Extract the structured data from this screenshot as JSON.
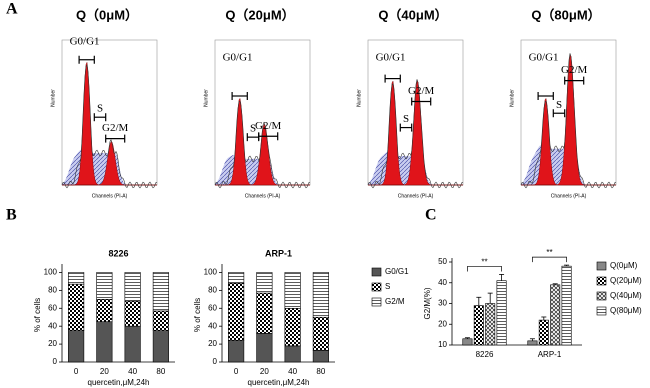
{
  "panels": [
    "A",
    "B",
    "C"
  ],
  "flow": {
    "titles": [
      "Q（0μM）",
      "Q（20μM）",
      "Q（40μM）",
      "Q（80μM）"
    ],
    "gates": [
      "G0/G1",
      "S",
      "G2/M"
    ],
    "x_label": "Channels (PI-A)",
    "y_label": "Number"
  },
  "chart_data": [
    {
      "type": "stacked_bar",
      "title": "8226",
      "x_label": "quercetin,μM,24h",
      "y_label": "% of cells",
      "categories": [
        "0",
        "20",
        "40",
        "80"
      ],
      "series": [
        {
          "color": "#555555",
          "values": [
            35,
            45,
            40,
            35
          ]
        },
        {
          "color": "#000000",
          "pattern": "checker",
          "values": [
            52,
            25,
            28,
            22
          ]
        },
        {
          "color": "#000000",
          "pattern": "hlines",
          "values": [
            13,
            30,
            32,
            43
          ]
        }
      ],
      "ylim": [
        0,
        105
      ],
      "yticks": [
        0,
        20,
        40,
        60,
        80,
        100
      ]
    },
    {
      "type": "stacked_bar",
      "title": "ARP-1",
      "x_label": "quercetin,μM,24h",
      "y_label": "% of cells",
      "categories": [
        "0",
        "20",
        "40",
        "80"
      ],
      "series": [
        {
          "name": "G0/G1",
          "color": "#555555",
          "values": [
            24,
            32,
            18,
            13
          ]
        },
        {
          "name": "S",
          "color": "#000000",
          "pattern": "checker",
          "values": [
            64,
            45,
            42,
            37
          ]
        },
        {
          "name": "G2/M",
          "color": "#000000",
          "pattern": "hlines",
          "values": [
            12,
            23,
            40,
            50
          ]
        }
      ],
      "ylim": [
        0,
        105
      ],
      "yticks": [
        0,
        20,
        40,
        60,
        80,
        100
      ],
      "legend": "right"
    },
    {
      "type": "grouped_bar",
      "y_label": "G2/M(%)",
      "categories": [
        "8226",
        "ARP-1"
      ],
      "series": [
        {
          "name": "Q(0μM)",
          "color": "#888888",
          "values": [
            13,
            12
          ],
          "errors": [
            0.5,
            1
          ]
        },
        {
          "name": "Q(20μM)",
          "color": "#000000",
          "pattern": "checker",
          "values": [
            29,
            22
          ],
          "errors": [
            4,
            1.5
          ]
        },
        {
          "name": "Q(40μM)",
          "color": "#000000",
          "pattern": "diag",
          "values": [
            30,
            39
          ],
          "errors": [
            5,
            0.5
          ]
        },
        {
          "name": "Q(80μM)",
          "color": "#000000",
          "pattern": "hlines",
          "values": [
            41,
            48
          ],
          "errors": [
            3,
            0.5
          ]
        }
      ],
      "annotations": [
        "**",
        "**"
      ],
      "ylim": [
        10,
        50
      ],
      "yticks": [
        10,
        20,
        30,
        40,
        50
      ],
      "legend": "right"
    }
  ]
}
